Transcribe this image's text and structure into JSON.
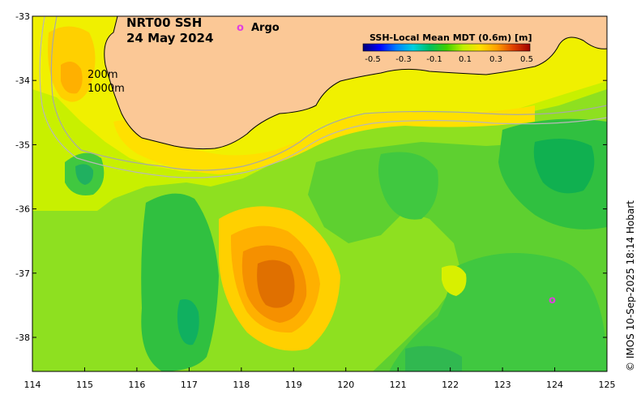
{
  "map": {
    "title_line1": "NRT00 SSH",
    "title_line2": "24 May 2024",
    "legend_argo_marker": "o",
    "legend_argo_label": "Argo",
    "depth_label_200": "200m",
    "depth_label_1000": "1000m",
    "colorbar_title": "SSH-Local Mean MDT (0.6m) [m]",
    "colorbar_ticks": [
      "-0.5",
      "-0.3",
      "-0.1",
      "0.1",
      "0.3",
      "0.5"
    ],
    "credit": "© IMOS 10-Sep-2025 18:14 Hobart",
    "x_ticks": [
      "114",
      "115",
      "116",
      "117",
      "118",
      "119",
      "120",
      "121",
      "122",
      "123",
      "124",
      "125"
    ],
    "y_ticks": [
      "-33",
      "-34",
      "-35",
      "-36",
      "-37",
      "-38"
    ],
    "argo_marker_label": "o",
    "colors": {
      "land": "#fbc896",
      "colorbar_stops": [
        "#000080",
        "#0000ff",
        "#00a0ff",
        "#00e0c0",
        "#00c040",
        "#80e000",
        "#ffff00",
        "#ffa000",
        "#ff4000",
        "#c00000",
        "#800000"
      ],
      "argo": "#e040e0"
    }
  }
}
